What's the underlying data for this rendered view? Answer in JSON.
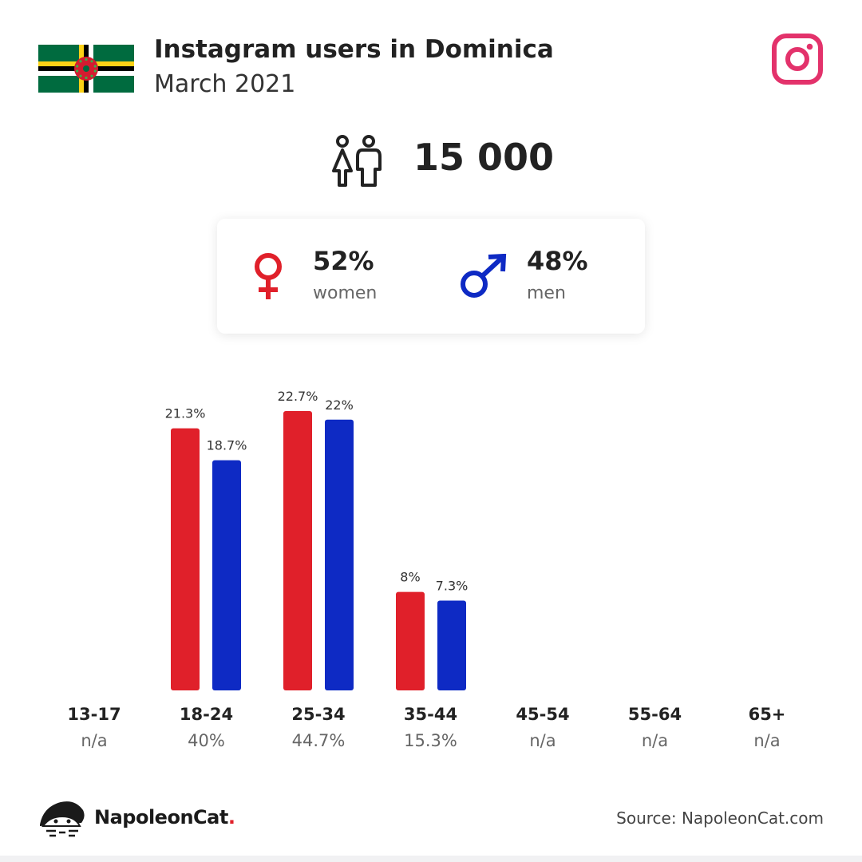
{
  "header": {
    "title": "Instagram users in Dominica",
    "subtitle": "March 2021"
  },
  "icons": {
    "flag": "dominica-flag-icon",
    "platform": "instagram-icon",
    "users": "users-icon",
    "female": "female-symbol-icon",
    "male": "male-symbol-icon",
    "brand": "napoleoncat-logo-icon"
  },
  "total_users": "15 000",
  "gender": {
    "women": {
      "pct": "52%",
      "label": "women"
    },
    "men": {
      "pct": "48%",
      "label": "men"
    }
  },
  "colors": {
    "women": "#e0202a",
    "men": "#0e2ac4",
    "instagram": "#e3326b"
  },
  "chart_data": {
    "type": "bar",
    "categories": [
      "13-17",
      "18-24",
      "25-34",
      "35-44",
      "45-54",
      "55-64",
      "65+"
    ],
    "category_totals": [
      "n/a",
      "40%",
      "44.7%",
      "15.3%",
      "n/a",
      "n/a",
      "n/a"
    ],
    "series": [
      {
        "name": "women",
        "values": [
          null,
          21.3,
          22.7,
          8,
          null,
          null,
          null
        ],
        "labels": [
          "",
          "21.3%",
          "22.7%",
          "8%",
          "",
          "",
          ""
        ]
      },
      {
        "name": "men",
        "values": [
          null,
          18.7,
          22,
          7.3,
          null,
          null,
          null
        ],
        "labels": [
          "",
          "18.7%",
          "22%",
          "7.3%",
          "",
          "",
          ""
        ]
      }
    ],
    "ylim": [
      0,
      22.7
    ],
    "title": "",
    "xlabel": "",
    "ylabel": "",
    "grid": false,
    "legend": "none"
  },
  "footer": {
    "brand_name": "NapoleonCat",
    "brand_dot": ".",
    "source": "Source: NapoleonCat.com"
  }
}
